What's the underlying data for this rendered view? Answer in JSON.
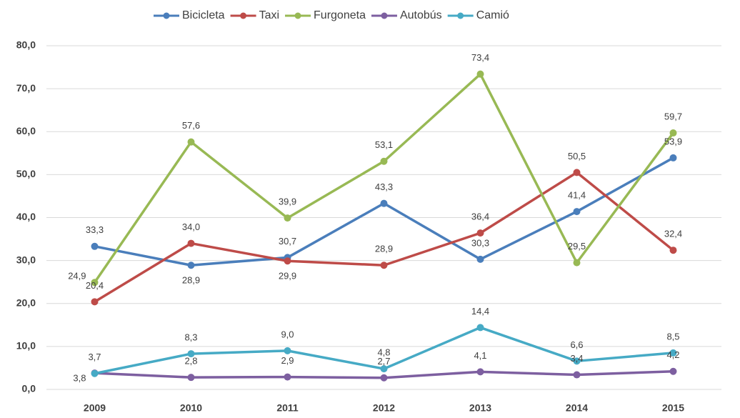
{
  "chart_data": {
    "type": "line",
    "categories": [
      "2009",
      "2010",
      "2011",
      "2012",
      "2013",
      "2014",
      "2015"
    ],
    "series": [
      {
        "name": "Bicicleta",
        "color": "#4a7ebb",
        "values": [
          33.3,
          28.9,
          30.7,
          43.3,
          30.3,
          41.4,
          53.9
        ],
        "value_labels": [
          "33,3",
          "28,9",
          "30,7",
          "43,3",
          "30,3",
          "41,4",
          "53,9"
        ]
      },
      {
        "name": "Taxi",
        "color": "#be4b48",
        "values": [
          20.4,
          34.0,
          29.9,
          28.9,
          36.4,
          50.5,
          32.4
        ],
        "value_labels": [
          "20,4",
          "34,0",
          "29,9",
          "28,9",
          "36,4",
          "50,5",
          "32,4"
        ]
      },
      {
        "name": "Furgoneta",
        "color": "#98b954",
        "values": [
          24.9,
          57.6,
          39.9,
          53.1,
          73.4,
          29.5,
          59.7
        ],
        "value_labels": [
          "24,9",
          "57,6",
          "39,9",
          "53,1",
          "73,4",
          "29,5",
          "59,7"
        ]
      },
      {
        "name": "Autobús",
        "color": "#7d5fa0",
        "values": [
          3.8,
          2.8,
          2.9,
          2.7,
          4.1,
          3.4,
          4.2
        ],
        "value_labels": [
          "3,8",
          "2,8",
          "2,9",
          "2,7",
          "4,1",
          "3,4",
          "4,2"
        ]
      },
      {
        "name": "Camió",
        "color": "#46aac5",
        "values": [
          3.7,
          8.3,
          9.0,
          4.8,
          14.4,
          6.6,
          8.5
        ],
        "value_labels": [
          "3,7",
          "8,3",
          "9,0",
          "4,8",
          "14,4",
          "6,6",
          "8,5"
        ]
      }
    ],
    "ylim": [
      0,
      80
    ],
    "yticks": [
      {
        "value": 0,
        "label": "0,0"
      },
      {
        "value": 10,
        "label": "10,0"
      },
      {
        "value": 20,
        "label": "20,0"
      },
      {
        "value": 30,
        "label": "30,0"
      },
      {
        "value": 40,
        "label": "40,0"
      },
      {
        "value": 50,
        "label": "50,0"
      },
      {
        "value": 60,
        "label": "60,0"
      },
      {
        "value": 70,
        "label": "70,0"
      },
      {
        "value": 80,
        "label": "80,0"
      }
    ],
    "grid": true,
    "legend": "top"
  }
}
